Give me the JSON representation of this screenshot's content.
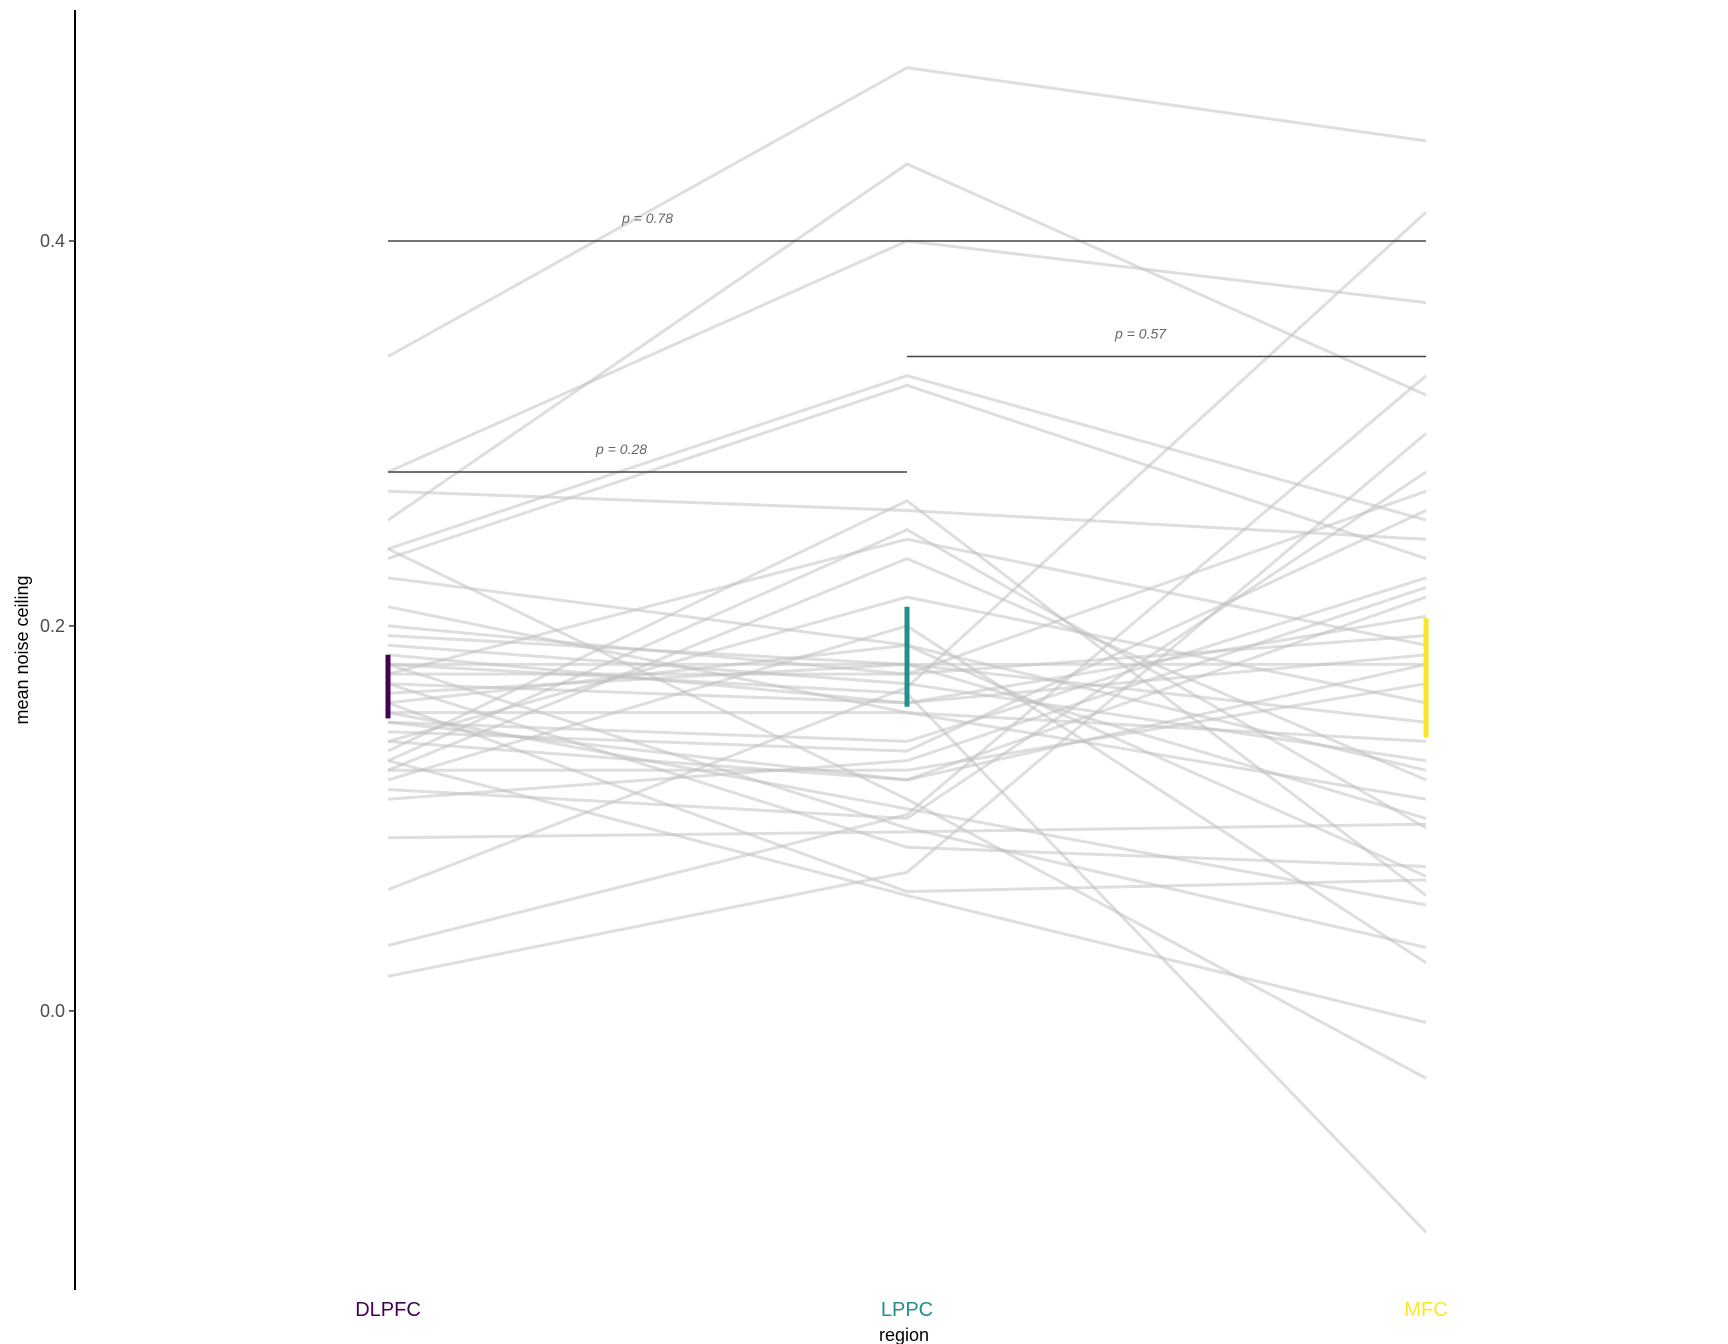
{
  "chart_data": {
    "type": "line",
    "title": "",
    "xlabel": "region",
    "ylabel": "mean noise ceiling",
    "categories": [
      "DLPFC",
      "LPPC",
      "MFC"
    ],
    "category_colors": [
      "#440154",
      "#21908C",
      "#FDE725"
    ],
    "ylim": [
      -0.145,
      0.52
    ],
    "yticks": [
      0.0,
      0.2,
      0.4
    ],
    "ytick_labels": [
      "0.0",
      "0.2",
      "0.4"
    ],
    "grid": false,
    "legend": "none",
    "subject_line_color": "#bdbdbd",
    "subjects": [
      [
        0.34,
        0.49,
        0.452
      ],
      [
        0.28,
        0.4,
        0.368
      ],
      [
        0.255,
        0.44,
        0.32
      ],
      [
        0.27,
        0.26,
        0.245
      ],
      [
        0.24,
        0.33,
        0.255
      ],
      [
        0.235,
        0.325,
        0.235
      ],
      [
        0.225,
        0.19,
        0.07
      ],
      [
        0.21,
        0.155,
        0.14
      ],
      [
        0.195,
        0.18,
        0.18
      ],
      [
        0.19,
        0.17,
        0.13
      ],
      [
        0.185,
        0.16,
        0.205
      ],
      [
        0.18,
        0.18,
        0.15
      ],
      [
        0.175,
        0.175,
        0.195
      ],
      [
        0.17,
        0.16,
        0.185
      ],
      [
        0.165,
        0.18,
        0.1
      ],
      [
        0.16,
        0.19,
        0.125
      ],
      [
        0.155,
        0.155,
        0.11
      ],
      [
        0.15,
        0.14,
        0.225
      ],
      [
        0.145,
        0.135,
        0.26
      ],
      [
        0.14,
        0.12,
        0.215
      ],
      [
        0.135,
        0.265,
        0.06
      ],
      [
        0.13,
        0.25,
        0.095
      ],
      [
        0.125,
        0.235,
        0.12
      ],
      [
        0.12,
        0.2,
        0.025
      ],
      [
        0.115,
        0.1,
        0.28
      ],
      [
        0.11,
        0.13,
        0.22
      ],
      [
        0.09,
        0.093,
        0.097
      ],
      [
        0.063,
        0.168,
        0.415
      ],
      [
        0.034,
        0.102,
        0.33
      ],
      [
        0.018,
        0.072,
        0.3
      ],
      [
        0.24,
        0.11,
        -0.035
      ],
      [
        0.18,
        0.095,
        0.033
      ],
      [
        0.17,
        0.085,
        0.075
      ],
      [
        0.155,
        0.105,
        0.055
      ],
      [
        0.14,
        0.215,
        0.16
      ],
      [
        0.125,
        0.125,
        0.17
      ],
      [
        0.16,
        0.062,
        0.068
      ],
      [
        0.18,
        0.165,
        -0.115
      ],
      [
        0.15,
        0.12,
        0.18
      ],
      [
        0.13,
        0.06,
        -0.006
      ],
      [
        0.175,
        0.245,
        0.19
      ],
      [
        0.2,
        0.175,
        0.27
      ]
    ],
    "error_bars": [
      {
        "category": "DLPFC",
        "low": 0.152,
        "high": 0.185
      },
      {
        "category": "LPPC",
        "low": 0.158,
        "high": 0.21
      },
      {
        "category": "MFC",
        "low": 0.142,
        "high": 0.204
      }
    ],
    "significance": [
      {
        "from": "DLPFC",
        "to": "MFC",
        "y": 0.4,
        "label": "p = 0.78"
      },
      {
        "from": "LPPC",
        "to": "MFC",
        "y": 0.34,
        "label": "p = 0.57"
      },
      {
        "from": "DLPFC",
        "to": "LPPC",
        "y": 0.28,
        "label": "p = 0.28"
      }
    ]
  }
}
